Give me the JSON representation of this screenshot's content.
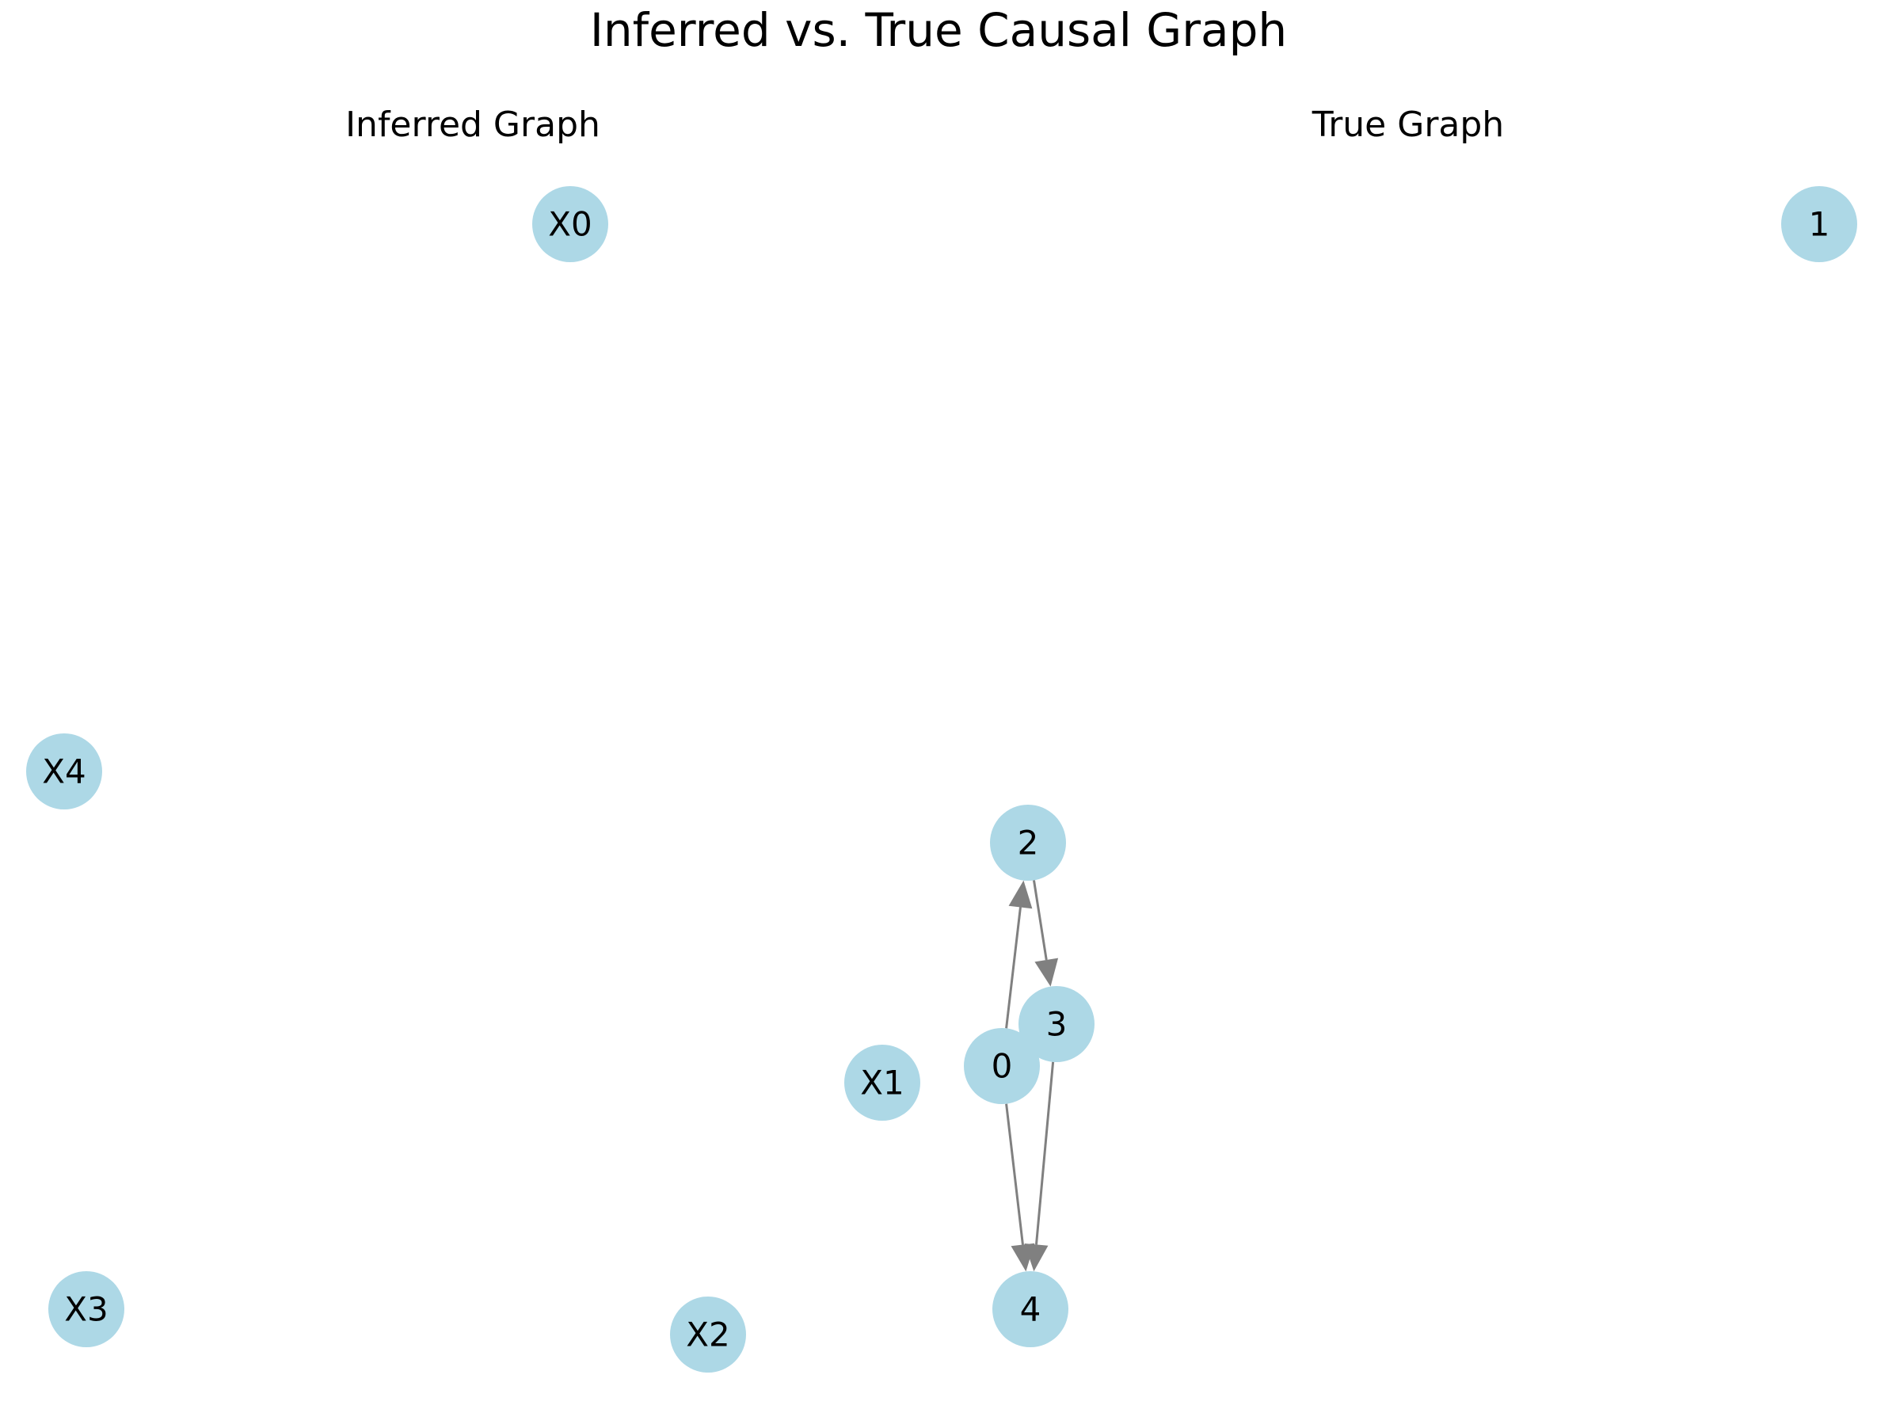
{
  "figure": {
    "title": "Inferred vs. True Causal Graph"
  },
  "colors": {
    "node_fill": "#add8e6",
    "edge": "#808080",
    "text": "#000000"
  },
  "panels": [
    {
      "id": "inferred",
      "title": "Inferred Graph",
      "nodes": [
        "X0",
        "X1",
        "X2",
        "X3",
        "X4"
      ],
      "edges": []
    },
    {
      "id": "true",
      "title": "True Graph",
      "nodes": [
        "0",
        "1",
        "2",
        "3",
        "4"
      ],
      "edges": [
        {
          "from": "0",
          "to": "2"
        },
        {
          "from": "2",
          "to": "3"
        },
        {
          "from": "0",
          "to": "4"
        },
        {
          "from": "3",
          "to": "4"
        }
      ]
    }
  ]
}
